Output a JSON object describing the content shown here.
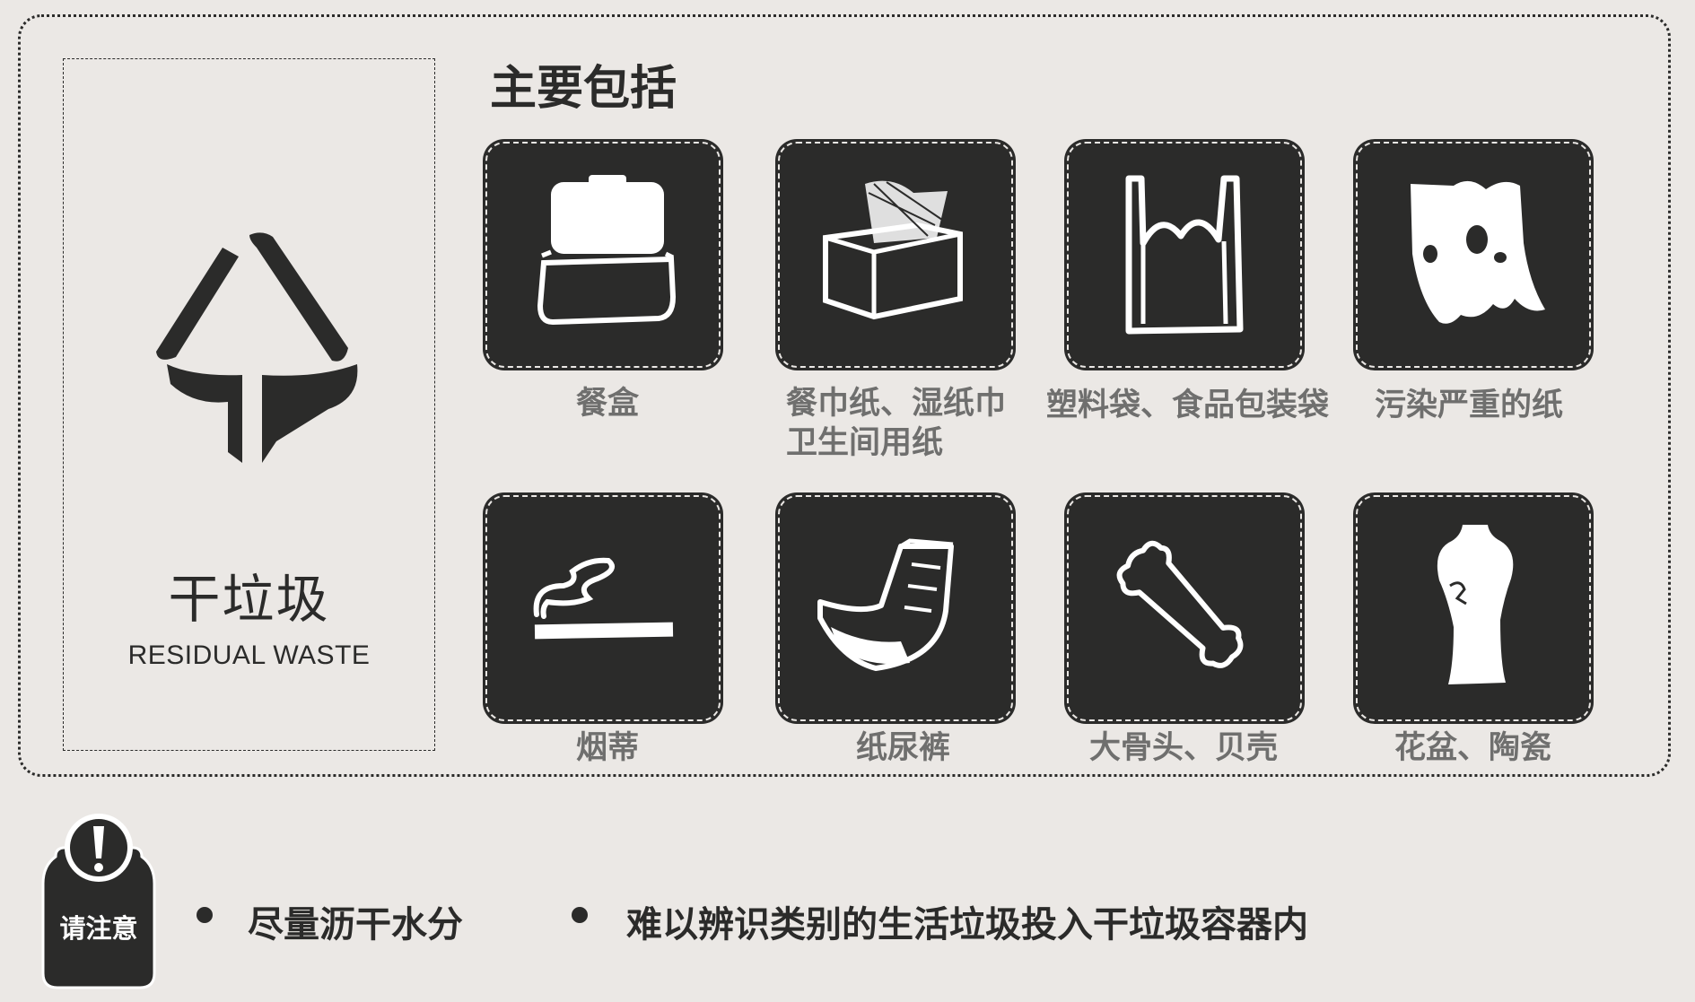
{
  "category": {
    "name": "干垃圾",
    "name_en": "RESIDUAL WASTE",
    "icon": "residual-waste-icon"
  },
  "section_title": "主要包括",
  "items": [
    {
      "label": "餐盒",
      "icon": "lunch-box-icon"
    },
    {
      "label_line1": "餐巾纸、湿纸巾",
      "label_line2": "卫生间用纸",
      "icon": "tissue-box-icon"
    },
    {
      "label": "塑料袋、食品包装袋",
      "icon": "plastic-bag-icon"
    },
    {
      "label": "污染严重的纸",
      "icon": "dirty-paper-icon"
    },
    {
      "label": "烟蒂",
      "icon": "cigarette-butt-icon"
    },
    {
      "label": "纸尿裤",
      "icon": "diaper-icon"
    },
    {
      "label": "大骨头、贝壳",
      "icon": "bone-icon"
    },
    {
      "label": "花盆、陶瓷",
      "icon": "vase-icon"
    }
  ],
  "notice": {
    "label": "请注意",
    "icon": "exclamation-icon",
    "tips": [
      "尽量沥干水分",
      "难以辨识类别的生活垃圾投入干垃圾容器内"
    ]
  },
  "colors": {
    "background": "#ebe8e5",
    "ink": "#2b2b2a",
    "caption": "#6f6f6e"
  }
}
